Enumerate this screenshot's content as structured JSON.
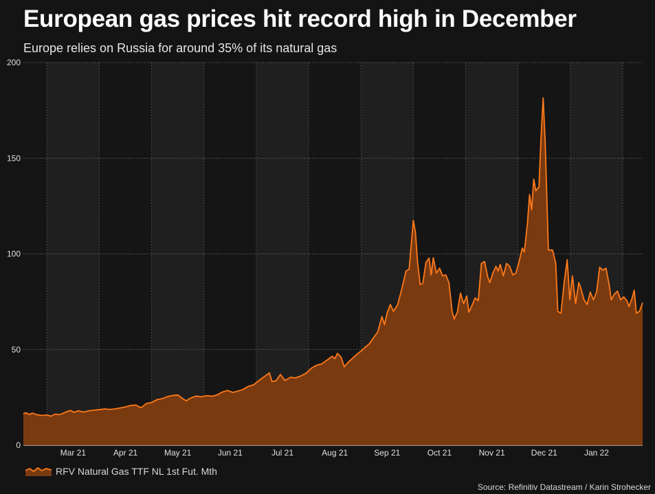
{
  "header": {
    "title": "European gas prices hit record high in December",
    "subtitle": "Europe relies on Russia for around 35% of its natural gas"
  },
  "footer": {
    "source": "Source: Refinitiv Datastream / Karin Strohecker"
  },
  "colors": {
    "background": "#141414",
    "band_dark": "#151515",
    "band_light": "#1f1f1f",
    "line": "#ff7a1a",
    "fill": "#7a3a10"
  },
  "chart_data": {
    "type": "area",
    "title": "European gas prices hit record high in December",
    "subtitle": "Europe relies on Russia for around 35% of its natural gas",
    "xlabel": "",
    "ylabel": "",
    "ylim": [
      0,
      200
    ],
    "yticks": [
      0,
      50,
      100,
      150,
      200
    ],
    "grid": true,
    "legend_position": "bottom-left",
    "xlim_months": [
      1.55,
      13.38
    ],
    "x_tick_labels": [
      {
        "label": "Mar 21",
        "pos": 2.5
      },
      {
        "label": "Apr 21",
        "pos": 3.5
      },
      {
        "label": "May 21",
        "pos": 4.5
      },
      {
        "label": "Jun 21",
        "pos": 5.5
      },
      {
        "label": "Jul 21",
        "pos": 6.5
      },
      {
        "label": "Aug 21",
        "pos": 7.5
      },
      {
        "label": "Sep 21",
        "pos": 8.5
      },
      {
        "label": "Oct 21",
        "pos": 9.5
      },
      {
        "label": "Nov 21",
        "pos": 10.5
      },
      {
        "label": "Dec 21",
        "pos": 11.5
      },
      {
        "label": "Jan 22",
        "pos": 12.5
      }
    ],
    "month_boundaries": [
      2,
      3,
      4,
      5,
      6,
      7,
      8,
      9,
      10,
      11,
      12,
      13
    ],
    "series": [
      {
        "name": "RFV Natural Gas TTF NL 1st Fut. Mth",
        "x_unit": "months since Jan 1 2021",
        "points": [
          [
            1.55,
            16.5
          ],
          [
            1.6,
            17.0
          ],
          [
            1.66,
            16.0
          ],
          [
            1.72,
            16.8
          ],
          [
            1.8,
            16.0
          ],
          [
            1.9,
            15.6
          ],
          [
            2.0,
            15.8
          ],
          [
            2.08,
            15.2
          ],
          [
            2.15,
            16.2
          ],
          [
            2.25,
            16.0
          ],
          [
            2.35,
            17.2
          ],
          [
            2.45,
            18.2
          ],
          [
            2.52,
            17.2
          ],
          [
            2.6,
            18.0
          ],
          [
            2.7,
            17.3
          ],
          [
            2.8,
            18.0
          ],
          [
            2.9,
            18.3
          ],
          [
            3.0,
            18.6
          ],
          [
            3.1,
            19.0
          ],
          [
            3.2,
            18.7
          ],
          [
            3.3,
            19.0
          ],
          [
            3.4,
            19.5
          ],
          [
            3.5,
            20.0
          ],
          [
            3.6,
            20.8
          ],
          [
            3.7,
            21.0
          ],
          [
            3.8,
            19.6
          ],
          [
            3.9,
            21.8
          ],
          [
            4.0,
            22.3
          ],
          [
            4.1,
            23.8
          ],
          [
            4.2,
            24.3
          ],
          [
            4.3,
            25.4
          ],
          [
            4.4,
            26.0
          ],
          [
            4.5,
            26.3
          ],
          [
            4.58,
            24.6
          ],
          [
            4.66,
            23.2
          ],
          [
            4.75,
            24.7
          ],
          [
            4.85,
            25.7
          ],
          [
            4.95,
            25.3
          ],
          [
            5.05,
            25.9
          ],
          [
            5.15,
            25.6
          ],
          [
            5.25,
            26.3
          ],
          [
            5.35,
            27.8
          ],
          [
            5.45,
            28.6
          ],
          [
            5.55,
            27.6
          ],
          [
            5.65,
            28.3
          ],
          [
            5.75,
            29.2
          ],
          [
            5.85,
            30.8
          ],
          [
            5.95,
            31.6
          ],
          [
            6.05,
            33.8
          ],
          [
            6.15,
            35.8
          ],
          [
            6.25,
            37.8
          ],
          [
            6.3,
            33.2
          ],
          [
            6.38,
            33.8
          ],
          [
            6.46,
            37.0
          ],
          [
            6.55,
            33.8
          ],
          [
            6.65,
            35.5
          ],
          [
            6.75,
            35.2
          ],
          [
            6.85,
            36.2
          ],
          [
            6.95,
            37.6
          ],
          [
            7.05,
            40.2
          ],
          [
            7.15,
            41.8
          ],
          [
            7.25,
            42.5
          ],
          [
            7.35,
            44.5
          ],
          [
            7.45,
            46.5
          ],
          [
            7.5,
            45.2
          ],
          [
            7.55,
            48.0
          ],
          [
            7.62,
            46.0
          ],
          [
            7.68,
            41.0
          ],
          [
            7.76,
            43.5
          ],
          [
            7.84,
            45.5
          ],
          [
            7.92,
            47.5
          ],
          [
            8.0,
            49.2
          ],
          [
            8.08,
            51.2
          ],
          [
            8.16,
            53.0
          ],
          [
            8.24,
            56.2
          ],
          [
            8.32,
            59.2
          ],
          [
            8.4,
            67.2
          ],
          [
            8.45,
            63.0
          ],
          [
            8.5,
            69.2
          ],
          [
            8.56,
            73.5
          ],
          [
            8.62,
            70.0
          ],
          [
            8.7,
            73.5
          ],
          [
            8.78,
            81.8
          ],
          [
            8.86,
            91.0
          ],
          [
            8.92,
            92.0
          ],
          [
            8.97,
            108.0
          ],
          [
            9.0,
            117.5
          ],
          [
            9.04,
            111.0
          ],
          [
            9.08,
            96.0
          ],
          [
            9.13,
            84.0
          ],
          [
            9.18,
            84.5
          ],
          [
            9.24,
            95.5
          ],
          [
            9.3,
            97.8
          ],
          [
            9.34,
            89.0
          ],
          [
            9.38,
            98.0
          ],
          [
            9.44,
            90.0
          ],
          [
            9.5,
            92.5
          ],
          [
            9.56,
            88.5
          ],
          [
            9.62,
            89.0
          ],
          [
            9.68,
            85.0
          ],
          [
            9.74,
            70.0
          ],
          [
            9.78,
            66.0
          ],
          [
            9.84,
            69.5
          ],
          [
            9.9,
            79.5
          ],
          [
            9.96,
            74.0
          ],
          [
            10.02,
            78.0
          ],
          [
            10.06,
            69.5
          ],
          [
            10.12,
            73.0
          ],
          [
            10.18,
            77.0
          ],
          [
            10.24,
            75.5
          ],
          [
            10.3,
            95.0
          ],
          [
            10.36,
            96.0
          ],
          [
            10.42,
            88.0
          ],
          [
            10.46,
            85.0
          ],
          [
            10.52,
            90.0
          ],
          [
            10.58,
            93.5
          ],
          [
            10.62,
            91.0
          ],
          [
            10.66,
            94.5
          ],
          [
            10.72,
            88.5
          ],
          [
            10.78,
            95.0
          ],
          [
            10.84,
            93.5
          ],
          [
            10.9,
            89.0
          ],
          [
            10.96,
            90.0
          ],
          [
            11.02,
            96.0
          ],
          [
            11.08,
            103.0
          ],
          [
            11.12,
            101.0
          ],
          [
            11.18,
            116.0
          ],
          [
            11.22,
            131.0
          ],
          [
            11.26,
            123.0
          ],
          [
            11.3,
            139.0
          ],
          [
            11.34,
            133.0
          ],
          [
            11.4,
            135.0
          ],
          [
            11.44,
            161.0
          ],
          [
            11.48,
            181.5
          ],
          [
            11.52,
            158.0
          ],
          [
            11.58,
            102.0
          ],
          [
            11.66,
            102.0
          ],
          [
            11.72,
            95.0
          ],
          [
            11.76,
            70.0
          ],
          [
            11.82,
            69.0
          ],
          [
            11.88,
            85.0
          ],
          [
            11.94,
            97.0
          ],
          [
            11.99,
            76.0
          ],
          [
            12.04,
            88.5
          ],
          [
            12.1,
            74.0
          ],
          [
            12.16,
            85.0
          ],
          [
            12.2,
            82.0
          ],
          [
            12.26,
            76.0
          ],
          [
            12.32,
            73.5
          ],
          [
            12.38,
            80.0
          ],
          [
            12.44,
            76.0
          ],
          [
            12.5,
            80.0
          ],
          [
            12.56,
            93.0
          ],
          [
            12.62,
            91.5
          ],
          [
            12.68,
            92.5
          ],
          [
            12.74,
            84.0
          ],
          [
            12.78,
            76.0
          ],
          [
            12.84,
            79.0
          ],
          [
            12.9,
            80.5
          ],
          [
            12.96,
            76.0
          ],
          [
            13.02,
            77.5
          ],
          [
            13.08,
            75.5
          ],
          [
            13.12,
            72.5
          ],
          [
            13.18,
            77.0
          ],
          [
            13.22,
            81.0
          ],
          [
            13.26,
            69.0
          ],
          [
            13.32,
            70.0
          ],
          [
            13.38,
            74.5
          ]
        ]
      }
    ]
  }
}
